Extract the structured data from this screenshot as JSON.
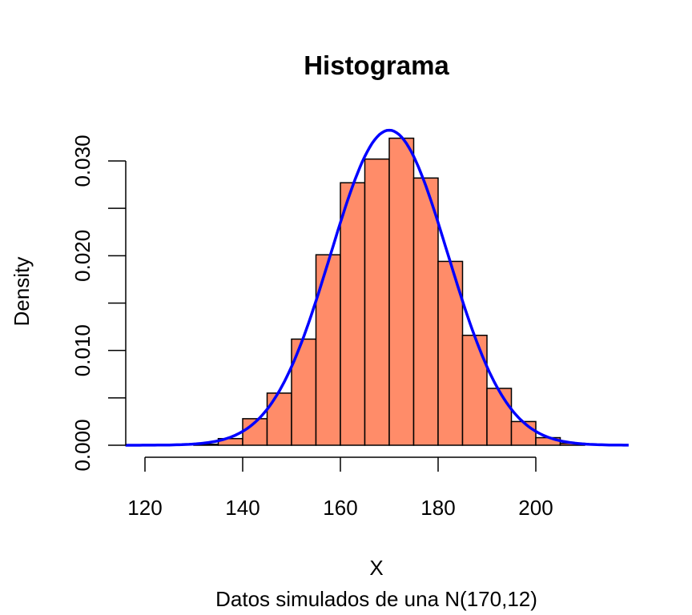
{
  "chart_data": {
    "type": "histogram",
    "title": "Histograma",
    "xlabel": "X",
    "ylabel": "Density",
    "subtitle": "Datos simulados de una N(170,12)",
    "xlim": [
      120,
      220
    ],
    "ylim": [
      0,
      0.034
    ],
    "x_ticks": [
      120,
      140,
      160,
      180,
      200
    ],
    "y_ticks": [
      0.0,
      0.005,
      0.01,
      0.015,
      0.02,
      0.025,
      0.03
    ],
    "y_tick_labels": [
      {
        "value": 0.0,
        "label": "0.000"
      },
      {
        "value": 0.01,
        "label": "0.010"
      },
      {
        "value": 0.02,
        "label": "0.020"
      },
      {
        "value": 0.03,
        "label": "0.030"
      }
    ],
    "bin_width": 5,
    "bins": [
      {
        "start": 120,
        "end": 125,
        "density": 0.0
      },
      {
        "start": 125,
        "end": 130,
        "density": 0.0
      },
      {
        "start": 130,
        "end": 135,
        "density": 0.0001
      },
      {
        "start": 135,
        "end": 140,
        "density": 0.0007
      },
      {
        "start": 140,
        "end": 145,
        "density": 0.0028
      },
      {
        "start": 145,
        "end": 150,
        "density": 0.0055
      },
      {
        "start": 150,
        "end": 155,
        "density": 0.0112
      },
      {
        "start": 155,
        "end": 160,
        "density": 0.0201
      },
      {
        "start": 160,
        "end": 165,
        "density": 0.0277
      },
      {
        "start": 165,
        "end": 170,
        "density": 0.0302
      },
      {
        "start": 170,
        "end": 175,
        "density": 0.0324
      },
      {
        "start": 175,
        "end": 180,
        "density": 0.0282
      },
      {
        "start": 180,
        "end": 185,
        "density": 0.0194
      },
      {
        "start": 185,
        "end": 190,
        "density": 0.0116
      },
      {
        "start": 190,
        "end": 195,
        "density": 0.006
      },
      {
        "start": 195,
        "end": 200,
        "density": 0.0025
      },
      {
        "start": 200,
        "end": 205,
        "density": 0.0008
      },
      {
        "start": 205,
        "end": 210,
        "density": 0.0002
      }
    ],
    "density_curve": {
      "distribution": "normal",
      "mean": 170,
      "sd": 12,
      "x_range": [
        116,
        219
      ],
      "color": "#0000ff"
    },
    "bar_fill": "#ff8c69",
    "bar_stroke": "#000000",
    "grid": false,
    "legend": "none"
  }
}
